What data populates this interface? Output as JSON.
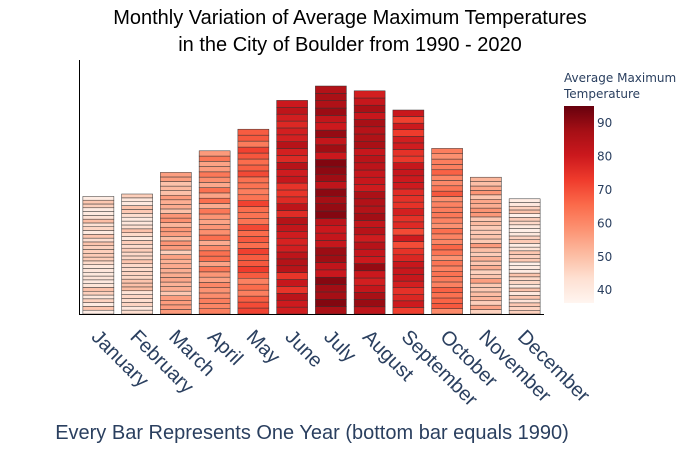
{
  "chart_data": {
    "type": "bar",
    "title_line1": "Monthly Variation of Average Maximum Temperatures",
    "title_line2": "in the City of Boulder from 1990 - 2020",
    "xlabel": "Every Bar Represents One Year (bottom bar equals 1990)",
    "categories": [
      "January",
      "February",
      "March",
      "April",
      "May",
      "June",
      "July",
      "August",
      "September",
      "October",
      "November",
      "December"
    ],
    "years_per_bar": 31,
    "first_year": 1990,
    "monthly_mean_max": [
      45,
      46,
      53,
      59,
      67,
      79,
      86,
      84,
      76,
      63,
      52,
      44
    ],
    "stack_total_relative": [
      0.49,
      0.5,
      0.59,
      0.68,
      0.77,
      0.89,
      0.95,
      0.93,
      0.85,
      0.69,
      0.57,
      0.48
    ],
    "colorbar": {
      "title_line1": "Average Maximum",
      "title_line2": "Temperature",
      "min": 36,
      "max": 95,
      "ticks": [
        40,
        50,
        60,
        70,
        80,
        90
      ],
      "tick_labels": [
        "40",
        "50",
        "60",
        "70",
        "80",
        "90"
      ],
      "colorscale": [
        "#fff5f0",
        "#fee0d2",
        "#fcbba1",
        "#fc9272",
        "#fb6a4a",
        "#ef3b2c",
        "#cb181d",
        "#a50f15",
        "#67000d"
      ]
    }
  }
}
